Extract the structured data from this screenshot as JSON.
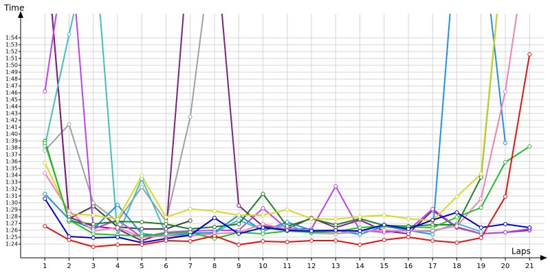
{
  "chart_data": {
    "type": "line",
    "y_label": "Time",
    "x_label": "Laps",
    "x": [
      1,
      2,
      3,
      4,
      5,
      6,
      7,
      8,
      9,
      10,
      11,
      12,
      13,
      14,
      15,
      16,
      17,
      18,
      19,
      20,
      21
    ],
    "xlim": [
      0,
      21.6
    ],
    "xticks": [
      1,
      2,
      3,
      4,
      5,
      6,
      7,
      8,
      9,
      10,
      11,
      12,
      13,
      14,
      15,
      16,
      17,
      18,
      19,
      20,
      21
    ],
    "ylim": [
      82,
      117.5
    ],
    "yticks": [
      {
        "value": 84,
        "label": "1:24"
      },
      {
        "value": 85,
        "label": "1:25"
      },
      {
        "value": 86,
        "label": "1:26"
      },
      {
        "value": 87,
        "label": "1:27"
      },
      {
        "value": 88,
        "label": "1:28"
      },
      {
        "value": 89,
        "label": "1:29"
      },
      {
        "value": 90,
        "label": "1:30"
      },
      {
        "value": 91,
        "label": "1:31"
      },
      {
        "value": 92,
        "label": "1:32"
      },
      {
        "value": 93,
        "label": "1:33"
      },
      {
        "value": 94,
        "label": "1:34"
      },
      {
        "value": 95,
        "label": "1:35"
      },
      {
        "value": 96,
        "label": "1:36"
      },
      {
        "value": 97,
        "label": "1:37"
      },
      {
        "value": 98,
        "label": "1:38"
      },
      {
        "value": 99,
        "label": "1:39"
      },
      {
        "value": 100,
        "label": "1:40"
      },
      {
        "value": 101,
        "label": "1:41"
      },
      {
        "value": 102,
        "label": "1:42"
      },
      {
        "value": 103,
        "label": "1:43"
      },
      {
        "value": 104,
        "label": "1:44"
      },
      {
        "value": 105,
        "label": "1:45"
      },
      {
        "value": 106,
        "label": "1:46"
      },
      {
        "value": 107,
        "label": "1:47"
      },
      {
        "value": 108,
        "label": "1:48"
      },
      {
        "value": 109,
        "label": "1:49"
      },
      {
        "value": 110,
        "label": "1:50"
      },
      {
        "value": 111,
        "label": "1:51"
      },
      {
        "value": 112,
        "label": "1:52"
      },
      {
        "value": 113,
        "label": "1:53"
      },
      {
        "value": 114,
        "label": "1:54"
      }
    ],
    "grid": true,
    "series": [
      {
        "color": "#404040",
        "values": [
          130,
          87.7,
          89.5,
          86.5,
          86.2,
          86.2,
          87.4,
          null,
          null,
          null,
          null,
          null,
          null,
          null,
          null,
          null,
          null,
          null,
          null,
          null,
          null
        ]
      },
      {
        "color": "#a0a0a0",
        "values": [
          97.6,
          101.4,
          90,
          87.3,
          92.3,
          87.3,
          102.5,
          130,
          null,
          null,
          null,
          null,
          null,
          null,
          null,
          null,
          null,
          null,
          null,
          null,
          null
        ]
      },
      {
        "color": "#802080",
        "values": [
          130,
          87.9,
          86.6,
          86.2,
          84.5,
          85.7,
          130,
          130,
          89.6,
          86.6,
          86.2,
          87.8,
          86.4,
          87.5,
          85.9,
          85.5,
          88.9,
          86.4,
          85.5,
          85.7,
          86
        ]
      },
      {
        "color": "#c040f0",
        "values": [
          106.2,
          130,
          86.2,
          87.5,
          85,
          85.7,
          85.9,
          86,
          86,
          89.2,
          86.2,
          86.2,
          92.4,
          86,
          85.7,
          86,
          89.1,
          86.5,
          85.5,
          85.7,
          86.2
        ]
      },
      {
        "color": "#40c0c0",
        "values": [
          98.3,
          114.5,
          130,
          85.2,
          93.5,
          85.5,
          85.7,
          85.6,
          87.5,
          86,
          86.8,
          85.6,
          85.5,
          85.8,
          86.8,
          86,
          85.8,
          87,
          85.8,
          null,
          null
        ]
      },
      {
        "color": "#2090e0",
        "values": [
          91.3,
          87.6,
          86.2,
          89.7,
          85.5,
          85.2,
          85.5,
          85.7,
          88.2,
          85.9,
          87.2,
          86,
          86,
          85.4,
          86.6,
          86,
          85.4,
          130,
          130,
          98.7,
          null
        ]
      },
      {
        "color": "#208020",
        "values": [
          99,
          87.3,
          86.9,
          87.3,
          87.2,
          86.9,
          86.2,
          86.5,
          86.9,
          91.3,
          86.6,
          87.7,
          86.8,
          87.7,
          86.7,
          86.6,
          86.8,
          86.8,
          93.7,
          130,
          null
        ]
      },
      {
        "color": "#d8d820",
        "values": [
          95.8,
          88.4,
          88.2,
          87.6,
          93.9,
          87.9,
          89.1,
          88.8,
          88.2,
          88.2,
          89,
          87.7,
          87.6,
          88,
          88.2,
          87.7,
          87.4,
          90.9,
          94.2,
          130,
          null
        ]
      },
      {
        "color": "#f080b0",
        "values": [
          94.3,
          88.8,
          85.9,
          86.4,
          85,
          85.2,
          85.2,
          85.5,
          85.7,
          86.9,
          86.2,
          85.7,
          85.5,
          85.9,
          86,
          85.9,
          86,
          86.6,
          90.6,
          106.2,
          130
        ]
      },
      {
        "color": "#20c020",
        "values": [
          98.7,
          87.5,
          85.5,
          85.3,
          85.2,
          85.5,
          85.7,
          84.8,
          85.7,
          85.5,
          85.9,
          85.7,
          85.8,
          86.4,
          86.6,
          86.5,
          86.4,
          87.9,
          89.3,
          95.9,
          98.2
        ]
      },
      {
        "color": "#0000d0",
        "values": [
          90.6,
          85.1,
          84.9,
          85,
          84.2,
          84.8,
          85.3,
          87.8,
          85.5,
          86.4,
          86,
          85.9,
          86,
          85.9,
          86.8,
          86.2,
          87.5,
          88.6,
          86.4,
          86.9,
          86.4
        ]
      },
      {
        "color": "#e81010",
        "values": [
          86.6,
          84.6,
          83.6,
          83.9,
          83.9,
          84.5,
          84.4,
          85.2,
          83.9,
          84.4,
          84.3,
          84.5,
          84.5,
          83.9,
          84.6,
          85,
          84.5,
          84.2,
          84.9,
          90.9,
          111.6
        ]
      }
    ]
  }
}
